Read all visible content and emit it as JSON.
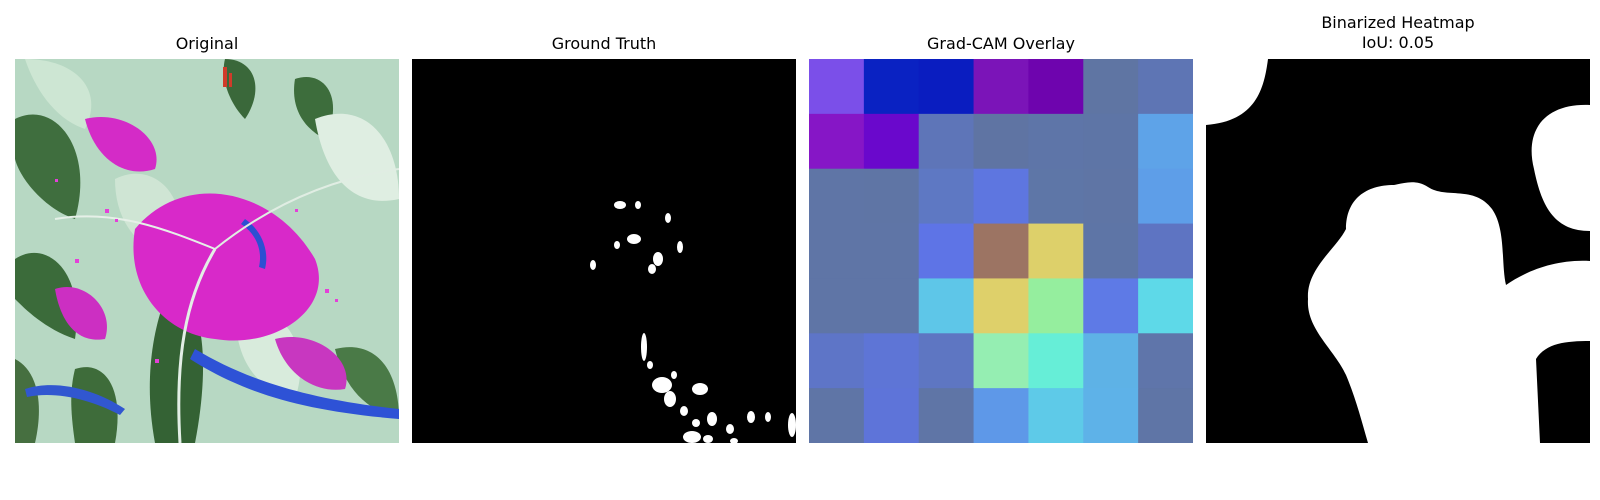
{
  "panels": [
    {
      "title": "Original"
    },
    {
      "title": "Ground Truth"
    },
    {
      "title": "Grad-CAM Overlay"
    },
    {
      "title": "Binarized Heatmap",
      "subtitle": "IoU: 0.05"
    }
  ],
  "gradcam_grid_colors": [
    [
      "#7b4fe9",
      "#0a22c2",
      "#0a1dc0",
      "#7b14b8",
      "#6e04ae",
      "#5f75a3",
      "#5e75b4"
    ],
    [
      "#8616c6",
      "#6a08cc",
      "#5e75b8",
      "#5f74a3",
      "#5e75a8",
      "#5e75a6",
      "#5ea3e8"
    ],
    [
      "#5f75a6",
      "#5f75a5",
      "#5e78c3",
      "#5e76e0",
      "#5e76a7",
      "#5f75a5",
      "#5e9ee8"
    ],
    [
      "#5f75a6",
      "#5f75a6",
      "#5e74e6",
      "#9c7463",
      "#ddd06a",
      "#5e75a6",
      "#5e74c2"
    ],
    [
      "#5f75a6",
      "#5f75a6",
      "#5ec6e8",
      "#ded06a",
      "#95ee9e",
      "#5e7ae6",
      "#5ed9e8"
    ],
    [
      "#5e75c7",
      "#5e75d6",
      "#5e76c2",
      "#95eeb2",
      "#66eed7",
      "#5eb2e6",
      "#5f75aa"
    ],
    [
      "#5f75a6",
      "#5e74d9",
      "#5f75a6",
      "#5e98e8",
      "#5ecae8",
      "#5eb2e8",
      "#5f75a6"
    ]
  ],
  "colors": {
    "background": "#ffffff",
    "mask_on": "#ffffff",
    "mask_off": "#000000"
  }
}
